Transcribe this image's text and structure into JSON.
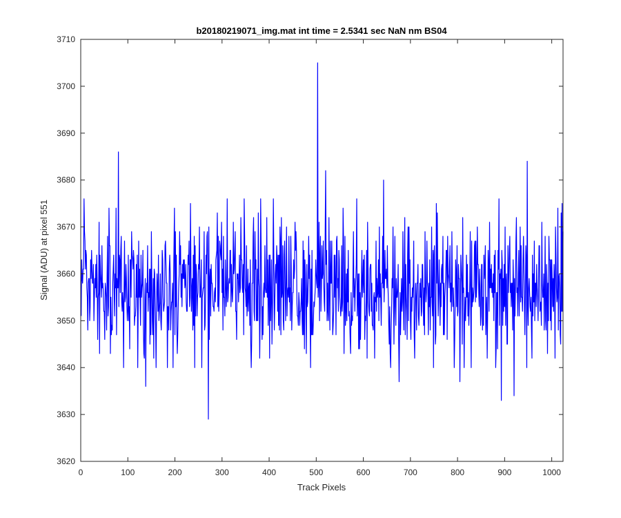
{
  "chart_data": {
    "type": "line",
    "title": "b20180219071_img.mat int time = 2.5341 sec  NaN nm BS04",
    "xlabel": "Track Pixels",
    "ylabel": "Signal (ADU) at pixel 551",
    "xlim": [
      0,
      1024
    ],
    "ylim": [
      3620,
      3710
    ],
    "xticks": [
      0,
      100,
      200,
      300,
      400,
      500,
      600,
      700,
      800,
      900,
      1000
    ],
    "yticks": [
      3620,
      3630,
      3640,
      3650,
      3660,
      3670,
      3680,
      3690,
      3700,
      3710
    ],
    "grid": false,
    "line_color": "#0000ff",
    "series": [
      {
        "x_start": 1,
        "x_step": 1,
        "points_count": 1024,
        "baseline": 3657,
        "noise_sd": 7,
        "spikes": [
          {
            "x": 80,
            "y": 3686
          },
          {
            "x": 138,
            "y": 3636
          },
          {
            "x": 271,
            "y": 3629
          },
          {
            "x": 503,
            "y": 3705
          },
          {
            "x": 520,
            "y": 3682
          },
          {
            "x": 643,
            "y": 3680
          },
          {
            "x": 676,
            "y": 3637
          },
          {
            "x": 805,
            "y": 3637
          },
          {
            "x": 893,
            "y": 3633
          },
          {
            "x": 920,
            "y": 3634
          },
          {
            "x": 948,
            "y": 3684
          },
          {
            "x": 1022,
            "y": 3675
          }
        ]
      }
    ]
  }
}
